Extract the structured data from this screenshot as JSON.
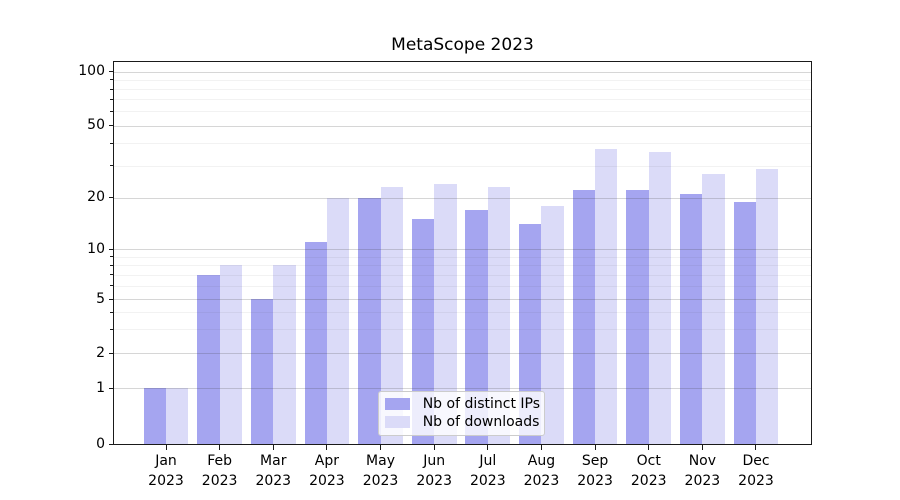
{
  "chart_data": {
    "type": "bar",
    "title": "MetaScope 2023",
    "categories": [
      "Jan 2023",
      "Feb 2023",
      "Mar 2023",
      "Apr 2023",
      "May 2023",
      "Jun 2023",
      "Jul 2023",
      "Aug 2023",
      "Sep 2023",
      "Oct 2023",
      "Nov 2023",
      "Dec 2023"
    ],
    "series": [
      {
        "name": "Nb of distinct IPs",
        "color": "#a5a5f0",
        "values": [
          1,
          7,
          5,
          11,
          20,
          15,
          17,
          14,
          22,
          22,
          21,
          19
        ]
      },
      {
        "name": "Nb of downloads",
        "color": "#dbdbf8",
        "values": [
          1,
          8,
          8,
          20,
          23,
          24,
          23,
          18,
          37,
          36,
          27,
          29
        ]
      }
    ],
    "xlabel": "",
    "ylabel": "",
    "yscale": "symlog",
    "ylim": [
      0,
      110
    ],
    "yticks_major": [
      0,
      1,
      2,
      5,
      10,
      20,
      50,
      100
    ],
    "yticks_minor": [
      3,
      4,
      6,
      7,
      8,
      9,
      30,
      40,
      60,
      70,
      80,
      90
    ],
    "yscale_anchors": [
      [
        0,
        0
      ],
      [
        1,
        0.1464
      ],
      [
        2,
        0.2374
      ],
      [
        5,
        0.3796
      ],
      [
        10,
        0.5096
      ],
      [
        20,
        0.6438
      ],
      [
        50,
        0.8328
      ],
      [
        100,
        0.974
      ]
    ],
    "grid": true,
    "legend_position": "lower center"
  },
  "colors": {
    "background": "#ffffff",
    "ips_bar": "#a5a5f0",
    "downloads_bar": "#dbdbf8",
    "spine": "#1a1a1a",
    "legend_border": "#cccccc",
    "text": "#000000"
  }
}
